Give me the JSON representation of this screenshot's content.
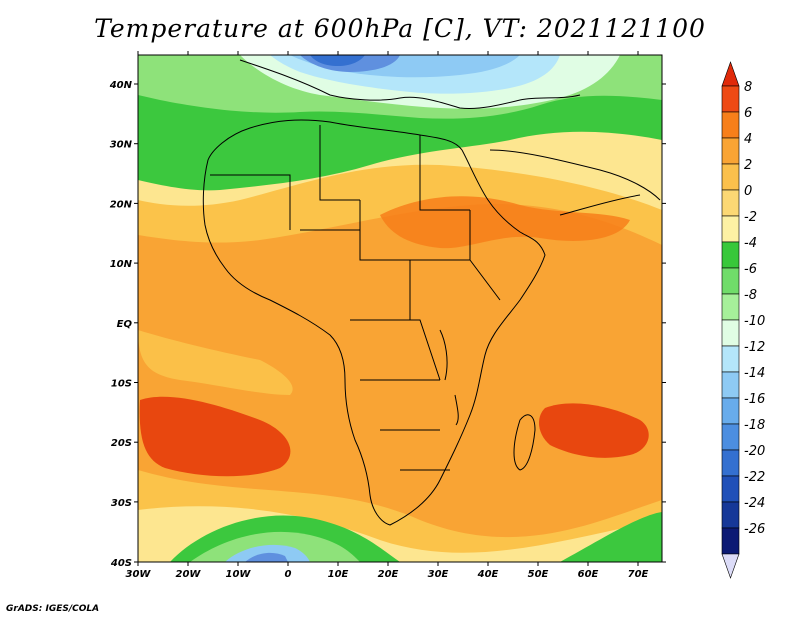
{
  "title": "Temperature at 600hPa [C], VT: 2021121100",
  "credit": "GrADS: IGES/COLA",
  "map": {
    "x_ticks": [
      "30W",
      "20W",
      "10W",
      "0",
      "10E",
      "20E",
      "30E",
      "40E",
      "50E",
      "60E",
      "70E"
    ],
    "y_ticks": [
      "40N",
      "30N",
      "20N",
      "10N",
      "EQ",
      "10S",
      "20S",
      "30S",
      "40S"
    ]
  },
  "colorbar": {
    "labels": [
      "8",
      "6",
      "4",
      "2",
      "0",
      "-2",
      "-4",
      "-6",
      "-8",
      "-10",
      "-12",
      "-14",
      "-16",
      "-18",
      "-20",
      "-22",
      "-24",
      "-26"
    ],
    "colors": [
      "#e02a0a",
      "#ee4a14",
      "#f77f1a",
      "#f9a434",
      "#fbc04c",
      "#fcd874",
      "#fdf1a4",
      "#38c83a",
      "#70dc6a",
      "#a6f09a",
      "#e0fde4",
      "#b4e6fa",
      "#8ecaf4",
      "#68acec",
      "#4c8ee0",
      "#3470d0",
      "#2050b8",
      "#163898",
      "#0c1a74",
      "#dcdcf8"
    ]
  },
  "colors": {
    "warmest": "#e8470f",
    "warm": "#f79e22",
    "mild": "#fbc34a",
    "cool": "#fde690",
    "green": "#3cc83e",
    "light_green": "#8ee27a",
    "cold": "#5f90df"
  }
}
